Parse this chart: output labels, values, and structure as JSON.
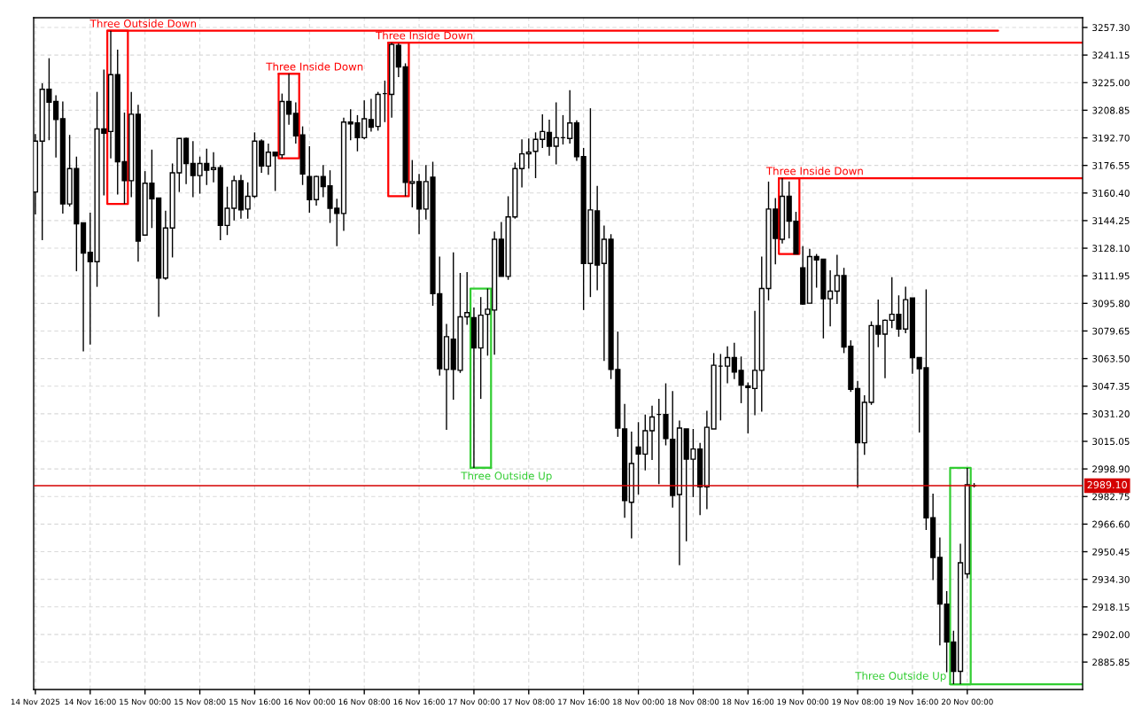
{
  "chart_data": {
    "type": "candlestick",
    "color": "#000000",
    "x": [
      "2025-11-14T08:00",
      "2025-11-14T09:00",
      "2025-11-14T10:00",
      "2025-11-14T11:00",
      "2025-11-14T12:00",
      "2025-11-14T13:00",
      "2025-11-14T14:00",
      "2025-11-14T15:00",
      "2025-11-14T16:00",
      "2025-11-14T17:00",
      "2025-11-14T18:00",
      "2025-11-14T19:00",
      "2025-11-14T20:00",
      "2025-11-14T21:00",
      "2025-11-14T22:00",
      "2025-11-14T23:00",
      "2025-11-15T00:00",
      "2025-11-15T01:00",
      "2025-11-15T02:00",
      "2025-11-15T03:00",
      "2025-11-15T04:00",
      "2025-11-15T05:00",
      "2025-11-15T06:00",
      "2025-11-15T07:00",
      "2025-11-15T08:00",
      "2025-11-15T09:00",
      "2025-11-15T10:00",
      "2025-11-15T11:00",
      "2025-11-15T12:00",
      "2025-11-15T13:00",
      "2025-11-15T14:00",
      "2025-11-15T15:00",
      "2025-11-15T16:00",
      "2025-11-15T17:00",
      "2025-11-15T18:00",
      "2025-11-15T19:00",
      "2025-11-15T20:00",
      "2025-11-15T21:00",
      "2025-11-15T22:00",
      "2025-11-15T23:00",
      "2025-11-16T00:00",
      "2025-11-16T01:00",
      "2025-11-16T02:00",
      "2025-11-16T03:00",
      "2025-11-16T04:00",
      "2025-11-16T05:00",
      "2025-11-16T06:00",
      "2025-11-16T07:00",
      "2025-11-16T08:00",
      "2025-11-16T09:00",
      "2025-11-16T10:00",
      "2025-11-16T11:00",
      "2025-11-16T12:00",
      "2025-11-16T13:00",
      "2025-11-16T14:00",
      "2025-11-16T15:00",
      "2025-11-16T16:00",
      "2025-11-16T17:00",
      "2025-11-16T18:00",
      "2025-11-16T19:00",
      "2025-11-16T20:00",
      "2025-11-16T21:00",
      "2025-11-16T22:00",
      "2025-11-16T23:00",
      "2025-11-17T00:00",
      "2025-11-17T01:00",
      "2025-11-17T02:00",
      "2025-11-17T03:00",
      "2025-11-17T04:00",
      "2025-11-17T05:00",
      "2025-11-17T06:00",
      "2025-11-17T07:00",
      "2025-11-17T08:00",
      "2025-11-17T09:00",
      "2025-11-17T10:00",
      "2025-11-17T11:00",
      "2025-11-17T12:00",
      "2025-11-17T13:00",
      "2025-11-17T14:00",
      "2025-11-17T15:00",
      "2025-11-17T16:00",
      "2025-11-17T17:00",
      "2025-11-17T18:00",
      "2025-11-17T19:00",
      "2025-11-17T20:00",
      "2025-11-17T21:00",
      "2025-11-17T22:00",
      "2025-11-17T23:00",
      "2025-11-18T00:00",
      "2025-11-18T01:00",
      "2025-11-18T02:00",
      "2025-11-18T03:00",
      "2025-11-18T04:00",
      "2025-11-18T05:00",
      "2025-11-18T06:00",
      "2025-11-18T07:00",
      "2025-11-18T08:00",
      "2025-11-18T09:00",
      "2025-11-18T10:00",
      "2025-11-18T11:00",
      "2025-11-18T12:00",
      "2025-11-18T13:00",
      "2025-11-18T14:00",
      "2025-11-18T15:00",
      "2025-11-18T16:00",
      "2025-11-18T17:00",
      "2025-11-18T18:00",
      "2025-11-18T19:00",
      "2025-11-18T20:00",
      "2025-11-18T21:00",
      "2025-11-18T22:00",
      "2025-11-18T23:00",
      "2025-11-19T00:00",
      "2025-11-19T01:00",
      "2025-11-19T02:00",
      "2025-11-19T03:00",
      "2025-11-19T04:00",
      "2025-11-19T05:00",
      "2025-11-19T06:00",
      "2025-11-19T07:00",
      "2025-11-19T08:00",
      "2025-11-19T09:00",
      "2025-11-19T10:00",
      "2025-11-19T11:00",
      "2025-11-19T12:00",
      "2025-11-19T13:00",
      "2025-11-19T14:00",
      "2025-11-19T15:00",
      "2025-11-19T16:00",
      "2025-11-19T17:00",
      "2025-11-19T18:00",
      "2025-11-19T19:00",
      "2025-11-19T20:00",
      "2025-11-19T21:00",
      "2025-11-19T22:00",
      "2025-11-19T23:00",
      "2025-11-20T00:00",
      "2025-11-20T01:00"
    ],
    "ohlc": [
      [
        3161.0,
        3194.9,
        3147.9,
        3190.8
      ],
      [
        3190.8,
        3224.6,
        3132.8,
        3221.1
      ],
      [
        3221.1,
        3239.3,
        3191.3,
        3213.5
      ],
      [
        3214.0,
        3217.6,
        3181.2,
        3203.4
      ],
      [
        3203.9,
        3214.0,
        3148.4,
        3154.0
      ],
      [
        3154.0,
        3194.4,
        3152.5,
        3174.7
      ],
      [
        3174.7,
        3181.7,
        3114.6,
        3142.4
      ],
      [
        3142.9,
        3142.9,
        3067.7,
        3125.2
      ],
      [
        3125.7,
        3148.9,
        3071.7,
        3120.2
      ],
      [
        3120.2,
        3219.6,
        3105.5,
        3197.9
      ],
      [
        3197.9,
        3232.7,
        3159.0,
        3195.4
      ],
      [
        3196.4,
        3255.4,
        3180.7,
        3229.7
      ],
      [
        3229.7,
        3244.3,
        3159.5,
        3178.7
      ],
      [
        3178.7,
        3207.5,
        3154.0,
        3167.6
      ],
      [
        3167.6,
        3219.6,
        3158.0,
        3206.5
      ],
      [
        3206.5,
        3212.0,
        3120.2,
        3132.3
      ],
      [
        3135.8,
        3173.2,
        3135.3,
        3166.1
      ],
      [
        3166.1,
        3185.8,
        3139.9,
        3157.0
      ],
      [
        3157.5,
        3157.5,
        3087.9,
        3110.6
      ],
      [
        3110.6,
        3150.0,
        3109.6,
        3139.9
      ],
      [
        3139.9,
        3177.7,
        3122.7,
        3172.2
      ],
      [
        3172.2,
        3192.3,
        3161.0,
        3192.3
      ],
      [
        3192.3,
        3192.8,
        3165.6,
        3177.7
      ],
      [
        3177.7,
        3190.8,
        3158.0,
        3170.6
      ],
      [
        3170.6,
        3181.7,
        3160.0,
        3177.7
      ],
      [
        3177.7,
        3186.3,
        3165.1,
        3173.7
      ],
      [
        3174.2,
        3184.3,
        3166.6,
        3175.2
      ],
      [
        3175.2,
        3176.7,
        3132.8,
        3141.4
      ],
      [
        3141.4,
        3164.1,
        3135.8,
        3151.5
      ],
      [
        3151.5,
        3170.6,
        3144.4,
        3167.6
      ],
      [
        3167.6,
        3171.1,
        3145.4,
        3150.5
      ],
      [
        3151.0,
        3166.6,
        3145.4,
        3158.5
      ],
      [
        3158.5,
        3195.9,
        3157.5,
        3190.8
      ],
      [
        3190.8,
        3191.8,
        3172.2,
        3176.2
      ],
      [
        3176.2,
        3189.3,
        3171.1,
        3184.3
      ],
      [
        3184.3,
        3184.3,
        3161.6,
        3182.2
      ],
      [
        3182.8,
        3218.6,
        3180.7,
        3214.0
      ],
      [
        3214.0,
        3230.2,
        3200.4,
        3206.5
      ],
      [
        3207.0,
        3213.5,
        3189.3,
        3193.9
      ],
      [
        3194.4,
        3199.4,
        3165.1,
        3171.6
      ],
      [
        3170.1,
        3187.8,
        3148.9,
        3156.5
      ],
      [
        3156.5,
        3170.6,
        3153.0,
        3170.1
      ],
      [
        3170.1,
        3176.7,
        3158.0,
        3164.1
      ],
      [
        3164.6,
        3173.7,
        3142.9,
        3151.5
      ],
      [
        3151.5,
        3157.0,
        3129.3,
        3148.4
      ],
      [
        3148.4,
        3204.5,
        3138.3,
        3201.9
      ],
      [
        3201.9,
        3209.5,
        3191.3,
        3200.9
      ],
      [
        3201.4,
        3206.0,
        3184.8,
        3192.8
      ],
      [
        3192.8,
        3214.6,
        3191.8,
        3203.9
      ],
      [
        3203.4,
        3215.6,
        3196.4,
        3198.9
      ],
      [
        3199.4,
        3219.6,
        3196.9,
        3218.1
      ],
      [
        3218.6,
        3226.2,
        3201.9,
        3218.6
      ],
      [
        3218.1,
        3248.4,
        3204.5,
        3247.4
      ],
      [
        3246.8,
        3247.9,
        3228.2,
        3234.2
      ],
      [
        3234.2,
        3236.3,
        3158.5,
        3166.6
      ],
      [
        3166.1,
        3179.7,
        3152.0,
        3167.1
      ],
      [
        3167.1,
        3171.6,
        3136.3,
        3151.0
      ],
      [
        3151.0,
        3176.7,
        3144.9,
        3167.1
      ],
      [
        3169.6,
        3178.7,
        3094.4,
        3101.5
      ],
      [
        3101.5,
        3123.2,
        3053.6,
        3057.6
      ],
      [
        3057.1,
        3083.8,
        3021.8,
        3076.3
      ],
      [
        3074.8,
        3125.7,
        3039.4,
        3057.1
      ],
      [
        3056.6,
        3113.6,
        3055.1,
        3087.9
      ],
      [
        3087.9,
        3114.1,
        3083.3,
        3090.4
      ],
      [
        3087.4,
        3093.4,
        2999.5,
        3069.7
      ],
      [
        3069.7,
        3099.5,
        3039.9,
        3088.9
      ],
      [
        3089.4,
        3104.5,
        3065.2,
        3092.4
      ],
      [
        3091.9,
        3137.8,
        3065.7,
        3133.3
      ],
      [
        3133.3,
        3143.4,
        3111.6,
        3111.6
      ],
      [
        3111.6,
        3158.5,
        3109.6,
        3146.4
      ],
      [
        3146.4,
        3178.2,
        3145.4,
        3174.7
      ],
      [
        3174.7,
        3191.8,
        3163.6,
        3183.3
      ],
      [
        3183.3,
        3192.3,
        3174.7,
        3184.3
      ],
      [
        3184.8,
        3195.9,
        3169.1,
        3191.8
      ],
      [
        3191.8,
        3206.5,
        3186.8,
        3196.4
      ],
      [
        3195.9,
        3203.4,
        3182.2,
        3187.8
      ],
      [
        3187.8,
        3213.5,
        3177.2,
        3192.8
      ],
      [
        3192.8,
        3206.0,
        3188.8,
        3192.8
      ],
      [
        3192.3,
        3220.6,
        3189.3,
        3201.4
      ],
      [
        3201.4,
        3202.9,
        3179.2,
        3181.7
      ],
      [
        3181.7,
        3186.8,
        3091.9,
        3119.2
      ],
      [
        3119.2,
        3210.0,
        3099.5,
        3150.5
      ],
      [
        3149.9,
        3164.6,
        3103.5,
        3118.2
      ],
      [
        3119.2,
        3141.4,
        3062.1,
        3133.3
      ],
      [
        3133.3,
        3136.3,
        3051.5,
        3057.1
      ],
      [
        3057.1,
        3079.3,
        3017.7,
        3022.8
      ],
      [
        3022.3,
        3036.9,
        2970.3,
        2980.4
      ],
      [
        2979.4,
        3020.7,
        2958.2,
        3002.1
      ],
      [
        3011.7,
        3026.3,
        2983.9,
        3007.6
      ],
      [
        3007.6,
        3030.8,
        2998.0,
        3021.3
      ],
      [
        3021.3,
        3035.9,
        3004.1,
        3029.3
      ],
      [
        3030.8,
        3039.9,
        2990.0,
        3030.8
      ],
      [
        3030.8,
        3049.0,
        3012.7,
        3016.7
      ],
      [
        3016.2,
        3044.5,
        2976.3,
        2983.4
      ],
      [
        2983.9,
        3027.3,
        2942.5,
        3022.8
      ],
      [
        3022.3,
        3022.3,
        2956.6,
        3004.6
      ],
      [
        3004.6,
        3022.3,
        2982.4,
        3010.6
      ],
      [
        3010.6,
        3014.2,
        2971.8,
        2988.4
      ],
      [
        2988.4,
        3032.9,
        2975.3,
        3023.3
      ],
      [
        3022.3,
        3066.7,
        3022.3,
        3059.6
      ],
      [
        3059.1,
        3066.2,
        3027.3,
        3059.1
      ],
      [
        3059.1,
        3070.7,
        3049.0,
        3064.1
      ],
      [
        3064.1,
        3072.7,
        3051.5,
        3055.6
      ],
      [
        3056.6,
        3064.7,
        3037.4,
        3048.0
      ],
      [
        3047.5,
        3049.5,
        3019.7,
        3046.5
      ],
      [
        3046.0,
        3091.4,
        3030.3,
        3056.6
      ],
      [
        3056.6,
        3123.2,
        3032.4,
        3104.5
      ],
      [
        3104.5,
        3167.1,
        3097.5,
        3151.0
      ],
      [
        3151.0,
        3157.5,
        3118.7,
        3133.8
      ],
      [
        3133.3,
        3169.1,
        3130.8,
        3158.5
      ],
      [
        3158.5,
        3167.1,
        3133.8,
        3143.9
      ],
      [
        3143.9,
        3149.4,
        3124.7,
        3124.7
      ],
      [
        3116.6,
        3129.3,
        3094.9,
        3095.4
      ],
      [
        3095.9,
        3127.7,
        3095.9,
        3123.2
      ],
      [
        3123.2,
        3124.7,
        3105.0,
        3121.2
      ],
      [
        3121.7,
        3121.7,
        3075.3,
        3098.5
      ],
      [
        3098.5,
        3115.1,
        3082.3,
        3103.0
      ],
      [
        3103.0,
        3124.2,
        3095.4,
        3112.1
      ],
      [
        3112.1,
        3116.6,
        3066.7,
        3070.2
      ],
      [
        3070.7,
        3074.2,
        3044.0,
        3045.5
      ],
      [
        3046.0,
        3050.5,
        2987.9,
        3014.2
      ],
      [
        3014.2,
        3042.0,
        3007.1,
        3037.9
      ],
      [
        3037.9,
        3085.3,
        3036.4,
        3082.8
      ],
      [
        3082.8,
        3098.0,
        3070.2,
        3077.8
      ],
      [
        3077.8,
        3086.4,
        3052.0,
        3085.9
      ],
      [
        3085.9,
        3111.1,
        3081.3,
        3089.4
      ],
      [
        3089.4,
        3100.5,
        3076.3,
        3080.8
      ],
      [
        3080.8,
        3105.5,
        3078.3,
        3098.0
      ],
      [
        3099.0,
        3099.0,
        3054.6,
        3064.1
      ],
      [
        3064.1,
        3064.1,
        3020.2,
        3057.6
      ],
      [
        3058.1,
        3104.0,
        2963.2,
        2970.3
      ],
      [
        2970.3,
        2984.4,
        2933.9,
        2947.1
      ],
      [
        2947.1,
        2958.7,
        2895.6,
        2919.8
      ],
      [
        2919.8,
        2927.4,
        2879.9,
        2897.6
      ],
      [
        2897.6,
        2904.2,
        2872.9,
        2880.4
      ],
      [
        2880.4,
        2955.1,
        2872.9,
        2944.0
      ],
      [
        2937.5,
        2999.5,
        2934.9,
        2989.6
      ],
      [
        2989.1,
        2990.6,
        2988.1,
        2989.1
      ]
    ],
    "series": [
      {
        "type": "line",
        "color": "#ff0000",
        "x": [
          "2025-11-14T18:30",
          "2025-11-20T04:30"
        ],
        "values": [
          3255.4,
          3255.4
        ]
      },
      {
        "type": "line",
        "color": "#ff0000",
        "x": [
          "2025-11-15T19:30",
          "2025-11-15T22:30"
        ],
        "values": [
          3230.2,
          3230.2
        ]
      },
      {
        "type": "line",
        "color": "#ff0000",
        "x": [
          "2025-11-16T11:30",
          "2025-11-20T16:50"
        ],
        "values": [
          3248.4,
          3248.4
        ]
      },
      {
        "type": "line",
        "color": "#32cd32",
        "x": [
          "2025-11-16T23:30",
          "2025-11-17T02:30"
        ],
        "values": [
          2999.5,
          2999.5
        ]
      },
      {
        "type": "line",
        "color": "#ff0000",
        "x": [
          "2025-11-18T20:30",
          "2025-11-20T16:50"
        ],
        "values": [
          3169.1,
          3169.1
        ]
      },
      {
        "type": "line",
        "color": "#32cd32",
        "x": [
          "2025-11-19T21:30",
          "2025-11-20T16:50"
        ],
        "values": [
          2872.9,
          2872.9
        ]
      }
    ],
    "annotations": [
      {
        "text": "Three Outside Down",
        "x": "2025-11-14T18:30",
        "y": 3255.4
      },
      {
        "text": "Three Inside Down",
        "x": "2025-11-15T19:30",
        "y": 3230.2
      },
      {
        "text": "Three Inside Down",
        "x": "2025-11-16T11:30",
        "y": 3248.4
      },
      {
        "text": "Three Outside Up",
        "x": "2025-11-16T23:30",
        "y": 2999.5
      },
      {
        "text": "Three Inside Down",
        "x": "2025-11-18T20:30",
        "y": 3169.1
      },
      {
        "text": "Three Outside Up",
        "x": "2025-11-19T21:30",
        "y": 2872.9
      }
    ],
    "ref_lines": [
      {
        "axis": "y",
        "value": 2989.1,
        "label": "2989.10",
        "color": "#d40000"
      }
    ],
    "xlim": [
      "2025-11-14T07:45",
      "2025-11-20T16:50"
    ],
    "xticks": [
      {
        "value": "2025-11-14T08:00",
        "label": "14 Nov 2025"
      },
      {
        "value": "2025-11-14T16:00",
        "label": "14 Nov 16:00"
      },
      {
        "value": "2025-11-15T00:00",
        "label": "15 Nov 00:00"
      },
      {
        "value": "2025-11-15T08:00",
        "label": "15 Nov 08:00"
      },
      {
        "value": "2025-11-15T16:00",
        "label": "15 Nov 16:00"
      },
      {
        "value": "2025-11-16T00:00",
        "label": "16 Nov 00:00"
      },
      {
        "value": "2025-11-16T08:00",
        "label": "16 Nov 08:00"
      },
      {
        "value": "2025-11-16T16:00",
        "label": "16 Nov 16:00"
      },
      {
        "value": "2025-11-17T00:00",
        "label": "17 Nov 00:00"
      },
      {
        "value": "2025-11-17T08:00",
        "label": "17 Nov 08:00"
      },
      {
        "value": "2025-11-17T16:00",
        "label": "17 Nov 16:00"
      },
      {
        "value": "2025-11-18T00:00",
        "label": "18 Nov 00:00"
      },
      {
        "value": "2025-11-18T08:00",
        "label": "18 Nov 08:00"
      },
      {
        "value": "2025-11-18T16:00",
        "label": "18 Nov 16:00"
      },
      {
        "value": "2025-11-19T00:00",
        "label": "19 Nov 00:00"
      },
      {
        "value": "2025-11-19T08:00",
        "label": "19 Nov 08:00"
      },
      {
        "value": "2025-11-19T16:00",
        "label": "19 Nov 16:00"
      },
      {
        "value": "2025-11-20T00:00",
        "label": "20 Nov 00:00"
      }
    ],
    "ylim": [
      2869.8,
      3263.0
    ],
    "yticks": [
      {
        "value": 2885.85,
        "label": "2885.85"
      },
      {
        "value": 2902.0,
        "label": "2902.00"
      },
      {
        "value": 2918.15,
        "label": "2918.15"
      },
      {
        "value": 2934.3,
        "label": "2934.30"
      },
      {
        "value": 2950.45,
        "label": "2950.45"
      },
      {
        "value": 2966.6,
        "label": "2966.60"
      },
      {
        "value": 2982.75,
        "label": "2982.75"
      },
      {
        "value": 2998.9,
        "label": "2998.90"
      },
      {
        "value": 3015.05,
        "label": "3015.05"
      },
      {
        "value": 3031.2,
        "label": "3031.20"
      },
      {
        "value": 3047.35,
        "label": "3047.35"
      },
      {
        "value": 3063.5,
        "label": "3063.50"
      },
      {
        "value": 3079.65,
        "label": "3079.65"
      },
      {
        "value": 3095.8,
        "label": "3095.80"
      },
      {
        "value": 3111.95,
        "label": "3111.95"
      },
      {
        "value": 3128.1,
        "label": "3128.10"
      },
      {
        "value": 3144.25,
        "label": "3144.25"
      },
      {
        "value": 3160.4,
        "label": "3160.40"
      },
      {
        "value": 3176.55,
        "label": "3176.55"
      },
      {
        "value": 3192.7,
        "label": "3192.70"
      },
      {
        "value": 3208.85,
        "label": "3208.85"
      },
      {
        "value": 3225.0,
        "label": "3225.00"
      },
      {
        "value": 3241.15,
        "label": "3241.15"
      },
      {
        "value": 3257.3,
        "label": "3257.30"
      }
    ],
    "grid": true
  }
}
